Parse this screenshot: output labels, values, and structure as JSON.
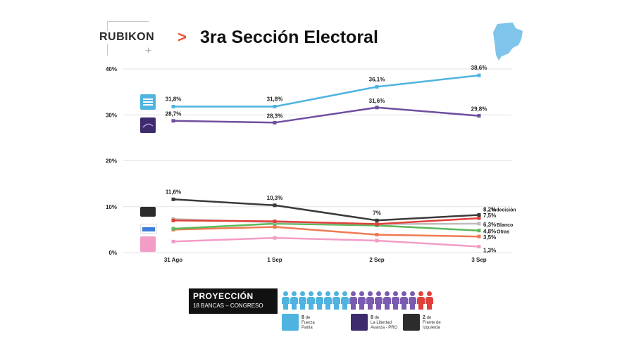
{
  "header": {
    "logo_text": "RUBIKON",
    "logo_plus": "+",
    "chevron": ">",
    "title": "3ra Sección Electoral"
  },
  "chart_data": {
    "type": "line",
    "title": "3ra Sección Electoral",
    "categories": [
      "31 Ago",
      "1 Sep",
      "2 Sep",
      "3 Sep"
    ],
    "yticks": [
      "0%",
      "10%",
      "20%",
      "30%",
      "40%"
    ],
    "ylim": [
      0,
      40
    ],
    "grid": true,
    "series": [
      {
        "name": "Fuerza Patria",
        "color": "#4fb3e0",
        "values": [
          31.8,
          31.8,
          36.1,
          38.6
        ],
        "labels": [
          "31,8%",
          "31,8%",
          "36,1%",
          "38,6%"
        ]
      },
      {
        "name": "La Libertad Avanza - PRO",
        "color": "#6f4ea0",
        "values": [
          28.7,
          28.3,
          31.6,
          29.8
        ],
        "labels": [
          "28,7%",
          "28,3%",
          "31,6%",
          "29,8%"
        ]
      },
      {
        "name": "Indecisión",
        "color": "#3a3a3a",
        "values": [
          11.6,
          10.3,
          7.0,
          8.2
        ],
        "labels": [
          "11,6%",
          "10,3%",
          "7%",
          "8,2%"
        ],
        "end_label": "Indecisión"
      },
      {
        "name": "Frente de Izquierda",
        "color": "#e0403a",
        "values": [
          7.0,
          6.8,
          6.2,
          7.5
        ],
        "labels": [
          "",
          "",
          "",
          "7,5%"
        ]
      },
      {
        "name": "Blanco",
        "color": "#bdbdbd",
        "values": [
          7.3,
          6.6,
          6.2,
          6.3
        ],
        "labels": [
          "",
          "",
          "",
          "6,3%"
        ],
        "end_label": "Blanco"
      },
      {
        "name": "Otras",
        "color": "#5cb85c",
        "values": [
          5.2,
          6.3,
          5.9,
          4.8
        ],
        "labels": [
          "",
          "",
          "",
          "4,8%"
        ],
        "end_label": "Otras"
      },
      {
        "name": "Avanza Libertad",
        "color": "#ef7a52",
        "values": [
          5.0,
          5.6,
          3.9,
          3.5
        ],
        "labels": [
          "",
          "",
          "",
          "3,5%"
        ]
      },
      {
        "name": "Somos",
        "color": "#f39cc6",
        "values": [
          2.4,
          3.2,
          2.6,
          1.3
        ],
        "labels": [
          "",
          "",
          "",
          "1,3%"
        ]
      }
    ]
  },
  "projection": {
    "title": "PROYECCIÓN",
    "subtitle": "18 BANCAS – CONGRESO",
    "seats": {
      "fuerza_patria": 8,
      "lla_pro": 8,
      "izquierda": 2
    },
    "colors": {
      "fuerza_patria": "#4fb3e0",
      "lla_pro": "#7a5bb0",
      "izquierda": "#e0403a"
    },
    "legend": [
      {
        "count": "8",
        "text_a": "de",
        "text_b": "Fuerza",
        "text_c": "Patria"
      },
      {
        "count": "8",
        "text_a": "de",
        "text_b": "La Libertad",
        "text_c": "Avanza - PRO"
      },
      {
        "count": "2",
        "text_a": "de",
        "text_b": "Frente de",
        "text_c": "Izquierda"
      }
    ]
  }
}
